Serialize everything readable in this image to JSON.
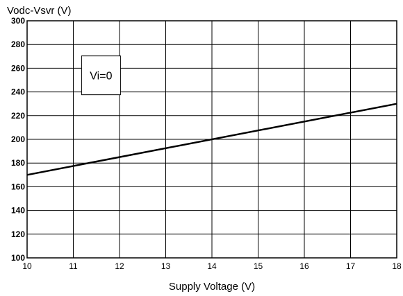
{
  "chart_data": {
    "type": "line",
    "title": "",
    "xlabel": "Supply Voltage  (V)",
    "ylabel": "Vodc-Vsvr (V)",
    "xlim": [
      10,
      18
    ],
    "ylim": [
      100,
      300
    ],
    "xticks": [
      10,
      11,
      12,
      13,
      14,
      15,
      16,
      17,
      18
    ],
    "yticks": [
      100,
      120,
      140,
      160,
      180,
      200,
      220,
      240,
      260,
      280,
      300
    ],
    "grid": true,
    "line_color": "#000000",
    "series": [
      {
        "x": [
          10,
          18
        ],
        "y": [
          170,
          230
        ]
      }
    ],
    "annotation": {
      "text": "Vi=0",
      "x": 11.6,
      "y": 254
    }
  }
}
